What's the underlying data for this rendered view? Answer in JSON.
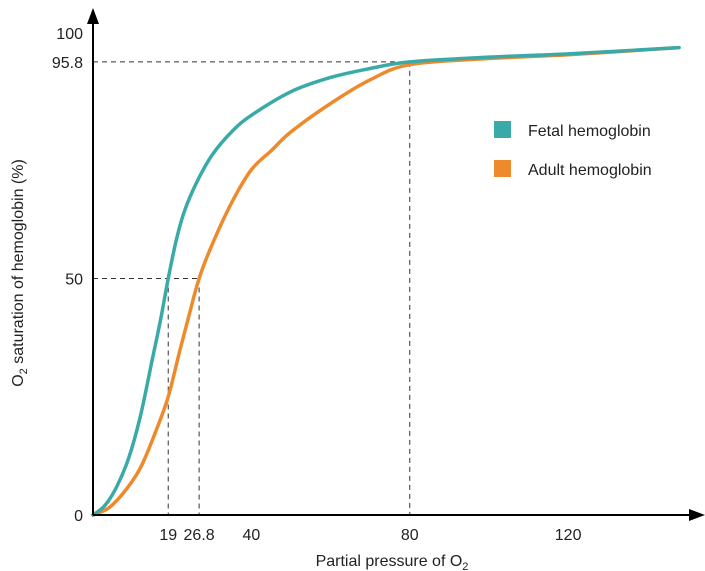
{
  "chart_data": {
    "type": "line",
    "xlabel": "Partial pressure of O",
    "xlabel_sub": "2",
    "ylabel": "O",
    "ylabel_sub": "2",
    "ylabel_rest": " saturation of hemoglobin (%)",
    "xlim": [
      0,
      155
    ],
    "ylim": [
      0,
      100
    ],
    "x_ticks": [
      {
        "value": 19,
        "label": "19"
      },
      {
        "value": 26.8,
        "label": "26.8"
      },
      {
        "value": 40,
        "label": "40"
      },
      {
        "value": 80,
        "label": "80"
      },
      {
        "value": 120,
        "label": "120"
      }
    ],
    "y_ticks": [
      {
        "value": 0,
        "label": "0"
      },
      {
        "value": 50,
        "label": "50"
      },
      {
        "value": 95.8,
        "label": "95.8"
      },
      {
        "value": 100,
        "label": "100"
      }
    ],
    "guides": [
      {
        "x": 19,
        "y": 50
      },
      {
        "x": 26.8,
        "y": 50
      },
      {
        "x": 80,
        "y": 95.8
      }
    ],
    "legend_position": "right",
    "series": [
      {
        "name": "Fetal hemoglobin",
        "color": "#3aaaa8",
        "points": [
          [
            0,
            0
          ],
          [
            3,
            2
          ],
          [
            6,
            6
          ],
          [
            9,
            12
          ],
          [
            12,
            21
          ],
          [
            15,
            33
          ],
          [
            17,
            41
          ],
          [
            19,
            50
          ],
          [
            21,
            58
          ],
          [
            23,
            64
          ],
          [
            26,
            70
          ],
          [
            30,
            76
          ],
          [
            35,
            81
          ],
          [
            40,
            84.5
          ],
          [
            50,
            89.5
          ],
          [
            60,
            92.5
          ],
          [
            70,
            94.4
          ],
          [
            80,
            95.8
          ],
          [
            100,
            96.8
          ],
          [
            120,
            97.5
          ],
          [
            148,
            98.8
          ]
        ]
      },
      {
        "name": "Adult hemoglobin",
        "color": "#ee8a2c",
        "points": [
          [
            0,
            0
          ],
          [
            4,
            1.5
          ],
          [
            8,
            5
          ],
          [
            12,
            10
          ],
          [
            16,
            18
          ],
          [
            19,
            25
          ],
          [
            22,
            35
          ],
          [
            24.5,
            43
          ],
          [
            26.8,
            50
          ],
          [
            30,
            57
          ],
          [
            35,
            66
          ],
          [
            40,
            73
          ],
          [
            45,
            77
          ],
          [
            50,
            81
          ],
          [
            60,
            87
          ],
          [
            70,
            92
          ],
          [
            80,
            95.2
          ],
          [
            100,
            96.5
          ],
          [
            120,
            97.3
          ],
          [
            148,
            98.8
          ]
        ]
      }
    ]
  }
}
